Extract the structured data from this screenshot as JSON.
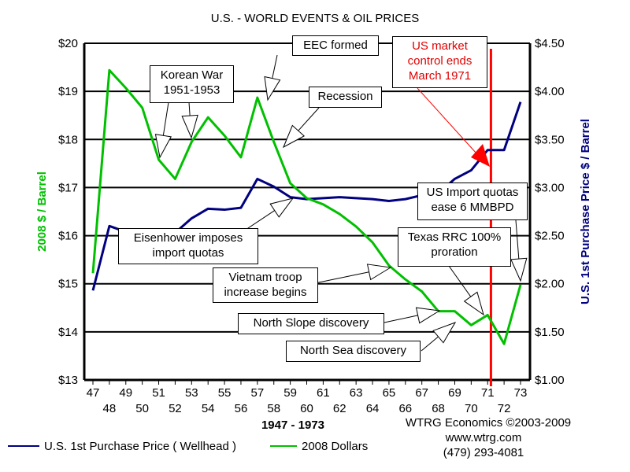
{
  "chart_data": {
    "type": "line",
    "title": "U.S. - WORLD EVENTS & OIL PRICES",
    "xlabel": "1947 - 1973",
    "ylabel_left": "2008 $ / Barrel",
    "ylabel_right": "U.S. 1st Purchase Price $ / Barrel",
    "ylim_left": [
      13,
      20
    ],
    "ylim_right": [
      1.0,
      4.5
    ],
    "yticks_left": [
      "$13",
      "$14",
      "$15",
      "$16",
      "$17",
      "$18",
      "$19",
      "$20"
    ],
    "yticks_right": [
      "$1.00",
      "$1.50",
      "$2.00",
      "$2.50",
      "$3.00",
      "$3.50",
      "$4.00",
      "$4.50"
    ],
    "x": [
      47,
      48,
      49,
      50,
      51,
      52,
      53,
      54,
      55,
      56,
      57,
      58,
      59,
      60,
      61,
      62,
      63,
      64,
      65,
      66,
      67,
      68,
      69,
      70,
      71,
      72,
      73
    ],
    "grid": "horizontal",
    "legend_placement": "bottom",
    "series": [
      {
        "name": "U.S. 1st Purchase Price ( Wellhead )",
        "axis": "right",
        "color": "#000080",
        "values": [
          1.93,
          2.6,
          2.54,
          2.51,
          2.53,
          2.53,
          2.68,
          2.78,
          2.77,
          2.79,
          3.09,
          3.01,
          2.9,
          2.88,
          2.89,
          2.9,
          2.89,
          2.88,
          2.86,
          2.88,
          2.92,
          2.94,
          3.09,
          3.18,
          3.39,
          3.39,
          3.89
        ]
      },
      {
        "name": "2008 Dollars",
        "axis": "left",
        "color": "#00c000",
        "values": [
          15.22,
          19.44,
          19.07,
          18.66,
          17.58,
          17.18,
          17.95,
          18.46,
          18.08,
          17.63,
          18.87,
          17.95,
          17.09,
          16.78,
          16.65,
          16.45,
          16.19,
          15.86,
          15.38,
          15.09,
          14.84,
          14.43,
          14.43,
          14.14,
          14.35,
          13.75,
          14.98
        ]
      }
    ],
    "marker_line": {
      "x": 71.2,
      "color": "#ff0000"
    },
    "annotations": {
      "eec": "EEC formed",
      "korean_1": "Korean War",
      "korean_2": "1951-1953",
      "recession": "Recession",
      "market_1": "US market",
      "market_2": "control ends",
      "market_3": "March 1971",
      "eisen_1": "Eisenhower imposes",
      "eisen_2": "import quotas",
      "quotas_1": "US Import quotas",
      "quotas_2": "ease 6 MMBPD",
      "texas_1": "Texas RRC 100%",
      "texas_2": "proration",
      "vietnam_1": "Vietnam  troop",
      "vietnam_2": "increase begins",
      "slope": "North Slope discovery",
      "sea": "North Sea discovery"
    }
  },
  "credits": {
    "org": "WTRG Economics  ©2003-2009",
    "web": "www.wtrg.com",
    "phone": "(479) 293-4081"
  }
}
